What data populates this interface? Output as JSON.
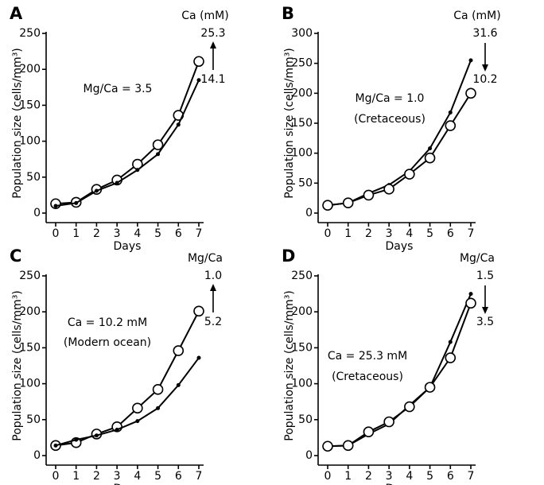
{
  "chart_data": [
    {
      "type": "line",
      "panel": "A",
      "ylabel": "Population size (cells/mm³)",
      "xlabel": "Days",
      "legend_title": "Ca (mM)",
      "arrow": "up",
      "annotations": [
        "Mg/Ca = 3.5"
      ],
      "x": [
        0,
        1,
        2,
        3,
        4,
        5,
        6,
        7
      ],
      "xlim": [
        0,
        7
      ],
      "xticks": [
        0,
        1,
        2,
        3,
        4,
        5,
        6,
        7
      ],
      "ylim": [
        0,
        250
      ],
      "yticks": [
        0,
        50,
        100,
        150,
        200,
        250
      ],
      "series": [
        {
          "name": "25.3",
          "color": "#000000",
          "marker": "open-circle",
          "values": [
            13,
            15,
            33,
            46,
            68,
            95,
            136,
            211
          ]
        },
        {
          "name": "14.1",
          "color": "#000000",
          "marker": "dot",
          "values": [
            10,
            14,
            31,
            42,
            60,
            82,
            123,
            185
          ]
        }
      ]
    },
    {
      "type": "line",
      "panel": "B",
      "ylabel": "Population size (cells/mm³)",
      "xlabel": "Days",
      "legend_title": "Ca (mM)",
      "arrow": "down",
      "annotations": [
        "Mg/Ca = 1.0",
        "(Cretaceous)"
      ],
      "x": [
        0,
        1,
        2,
        3,
        4,
        5,
        6,
        7
      ],
      "xlim": [
        0,
        7
      ],
      "xticks": [
        0,
        1,
        2,
        3,
        4,
        5,
        6,
        7
      ],
      "ylim": [
        0,
        300
      ],
      "yticks": [
        0,
        50,
        100,
        150,
        200,
        250,
        300
      ],
      "series": [
        {
          "name": "31.6",
          "color": "#000000",
          "marker": "dot",
          "values": [
            13,
            17,
            33,
            47,
            70,
            108,
            168,
            255
          ]
        },
        {
          "name": "10.2",
          "color": "#000000",
          "marker": "open-circle",
          "values": [
            13,
            17,
            30,
            40,
            65,
            92,
            146,
            200
          ]
        }
      ]
    },
    {
      "type": "line",
      "panel": "C",
      "ylabel": "Population size (cells/mm³)",
      "xlabel": "Days",
      "legend_title": "Mg/Ca",
      "arrow": "up",
      "annotations": [
        "Ca = 10.2 mM",
        "(Modern ocean)"
      ],
      "x": [
        0,
        1,
        2,
        3,
        4,
        5,
        6,
        7
      ],
      "xlim": [
        0,
        7
      ],
      "xticks": [
        0,
        1,
        2,
        3,
        4,
        5,
        6,
        7
      ],
      "ylim": [
        0,
        250
      ],
      "yticks": [
        0,
        50,
        100,
        150,
        200,
        250
      ],
      "series": [
        {
          "name": "1.0",
          "color": "#000000",
          "marker": "open-circle",
          "values": [
            14,
            18,
            30,
            40,
            66,
            92,
            146,
            201
          ]
        },
        {
          "name": "5.2",
          "color": "#000000",
          "marker": "dot",
          "values": [
            14,
            22,
            28,
            36,
            48,
            66,
            98,
            136
          ]
        }
      ]
    },
    {
      "type": "line",
      "panel": "D",
      "ylabel": "Population size (cells/mm³)",
      "xlabel": "Days",
      "legend_title": "Mg/Ca",
      "arrow": "down",
      "annotations": [
        "Ca = 25.3 mM",
        "(Cretaceous)"
      ],
      "x": [
        0,
        1,
        2,
        3,
        4,
        5,
        6,
        7
      ],
      "xlim": [
        0,
        7
      ],
      "xticks": [
        0,
        1,
        2,
        3,
        4,
        5,
        6,
        7
      ],
      "ylim": [
        0,
        250
      ],
      "yticks": [
        0,
        50,
        100,
        150,
        200,
        250
      ],
      "series": [
        {
          "name": "1.5",
          "color": "#000000",
          "marker": "dot",
          "values": [
            13,
            14,
            30,
            44,
            70,
            95,
            158,
            225
          ]
        },
        {
          "name": "3.5",
          "color": "#000000",
          "marker": "open-circle",
          "values": [
            13,
            14,
            33,
            47,
            68,
            95,
            136,
            212
          ]
        }
      ]
    }
  ]
}
